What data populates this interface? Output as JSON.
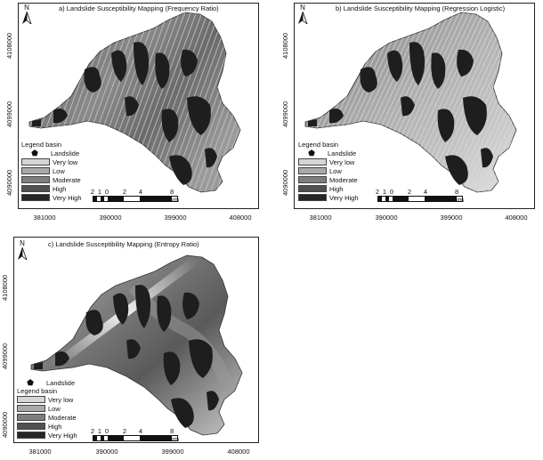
{
  "panels": [
    {
      "title": "a) Landslide Susceptibility Mapping (Frequency Ratio)",
      "x_ticks": [
        "381000",
        "390000",
        "399000",
        "408000"
      ],
      "y_ticks": [
        "4108000",
        "4099000",
        "4090000"
      ]
    },
    {
      "title": "b) Landslide Susceptibility Mapping (Regression Logistic)",
      "x_ticks": [
        "381000",
        "390000",
        "399000",
        "408000"
      ],
      "y_ticks": [
        "4108000",
        "4099000",
        "4090000"
      ]
    },
    {
      "title": "c) Landslide Susceptibility Mapping (Entropy Ratio)",
      "x_ticks": [
        "381000",
        "390000",
        "399000",
        "408000"
      ],
      "y_ticks": [
        "4108000",
        "4099000",
        "4090000"
      ]
    }
  ],
  "north_label": "N",
  "legend": {
    "landslide_label": "Landslide",
    "title": "Legend basin",
    "classes": [
      {
        "label": "Very low",
        "color": "#d6d6d6"
      },
      {
        "label": "Low",
        "color": "#a9a9a9"
      },
      {
        "label": "Moderate",
        "color": "#7e7e7e"
      },
      {
        "label": "High",
        "color": "#505050"
      },
      {
        "label": "Very High",
        "color": "#262626"
      }
    ]
  },
  "scalebar": {
    "labels": [
      "2",
      "1",
      "0",
      "2",
      "4",
      "8 km"
    ]
  }
}
